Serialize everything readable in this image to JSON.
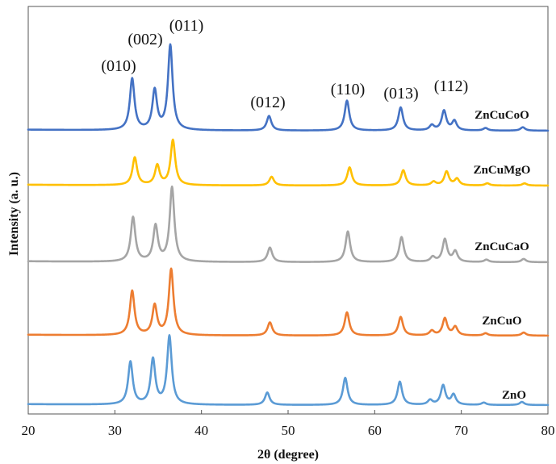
{
  "chart_data": {
    "type": "line",
    "xlabel": "2θ (degree)",
    "ylabel": "Intensity (a. u.)",
    "xlim": [
      20,
      80
    ],
    "xticks": [
      "20",
      "30",
      "40",
      "50",
      "60",
      "70",
      "80"
    ],
    "grid": false,
    "y_ticks_shown": false,
    "plot_frame": true,
    "baseline_order_bottom_to_top": [
      "ZnO",
      "ZnCuO",
      "ZnCuCaO",
      "ZnCuMgO",
      "ZnCuCoO"
    ],
    "series": [
      {
        "name": "ZnO",
        "color": "#5b9bd5",
        "peaks": [
          {
            "x": 31.8,
            "y": 55
          },
          {
            "x": 34.4,
            "y": 58
          },
          {
            "x": 36.3,
            "y": 88
          },
          {
            "x": 47.6,
            "y": 16
          },
          {
            "x": 56.6,
            "y": 35
          },
          {
            "x": 62.9,
            "y": 30
          },
          {
            "x": 66.4,
            "y": 6
          },
          {
            "x": 67.9,
            "y": 25
          },
          {
            "x": 69.1,
            "y": 13
          },
          {
            "x": 72.6,
            "y": 3
          },
          {
            "x": 77.0,
            "y": 4
          }
        ]
      },
      {
        "name": "ZnCuO",
        "color": "#ed7d31",
        "peaks": [
          {
            "x": 32.0,
            "y": 57
          },
          {
            "x": 34.6,
            "y": 38
          },
          {
            "x": 36.5,
            "y": 85
          },
          {
            "x": 47.9,
            "y": 17
          },
          {
            "x": 56.8,
            "y": 30
          },
          {
            "x": 63.0,
            "y": 24
          },
          {
            "x": 66.6,
            "y": 6
          },
          {
            "x": 68.1,
            "y": 22
          },
          {
            "x": 69.3,
            "y": 11
          },
          {
            "x": 72.8,
            "y": 3
          },
          {
            "x": 77.2,
            "y": 4
          }
        ]
      },
      {
        "name": "ZnCuCaO",
        "color": "#a5a5a5",
        "peaks": [
          {
            "x": 32.1,
            "y": 55
          },
          {
            "x": 34.7,
            "y": 44
          },
          {
            "x": 36.6,
            "y": 92
          },
          {
            "x": 47.9,
            "y": 18
          },
          {
            "x": 56.9,
            "y": 38
          },
          {
            "x": 63.1,
            "y": 31
          },
          {
            "x": 66.7,
            "y": 6
          },
          {
            "x": 68.1,
            "y": 28
          },
          {
            "x": 69.3,
            "y": 13
          },
          {
            "x": 72.9,
            "y": 3
          },
          {
            "x": 77.2,
            "y": 4
          }
        ]
      },
      {
        "name": "ZnCuMgO",
        "color": "#ffc000",
        "peaks": [
          {
            "x": 32.3,
            "y": 38
          },
          {
            "x": 34.9,
            "y": 27
          },
          {
            "x": 36.7,
            "y": 62
          },
          {
            "x": 48.1,
            "y": 12
          },
          {
            "x": 57.1,
            "y": 25
          },
          {
            "x": 63.3,
            "y": 21
          },
          {
            "x": 66.8,
            "y": 5
          },
          {
            "x": 68.3,
            "y": 19
          },
          {
            "x": 69.5,
            "y": 9
          },
          {
            "x": 73.0,
            "y": 3
          },
          {
            "x": 77.3,
            "y": 3
          }
        ]
      },
      {
        "name": "ZnCuCoO",
        "color": "#4472c4",
        "peaks": [
          {
            "x": 32.0,
            "y": 60
          },
          {
            "x": 34.6,
            "y": 46
          },
          {
            "x": 36.4,
            "y": 99
          },
          {
            "x": 47.8,
            "y": 17
          },
          {
            "x": 56.8,
            "y": 35
          },
          {
            "x": 63.0,
            "y": 27
          },
          {
            "x": 66.6,
            "y": 6
          },
          {
            "x": 68.0,
            "y": 23
          },
          {
            "x": 69.2,
            "y": 11
          },
          {
            "x": 72.8,
            "y": 3
          },
          {
            "x": 77.1,
            "y": 4
          }
        ]
      }
    ],
    "peak_labels": [
      {
        "text": "(010)",
        "x": 32.0
      },
      {
        "text": "(002)",
        "x": 34.6
      },
      {
        "text": "(011)",
        "x": 36.4
      },
      {
        "text": "(012)",
        "x": 47.8
      },
      {
        "text": "(110)",
        "x": 56.8
      },
      {
        "text": "(013)",
        "x": 63.0
      },
      {
        "text": "(112)",
        "x": 68.0
      }
    ]
  }
}
